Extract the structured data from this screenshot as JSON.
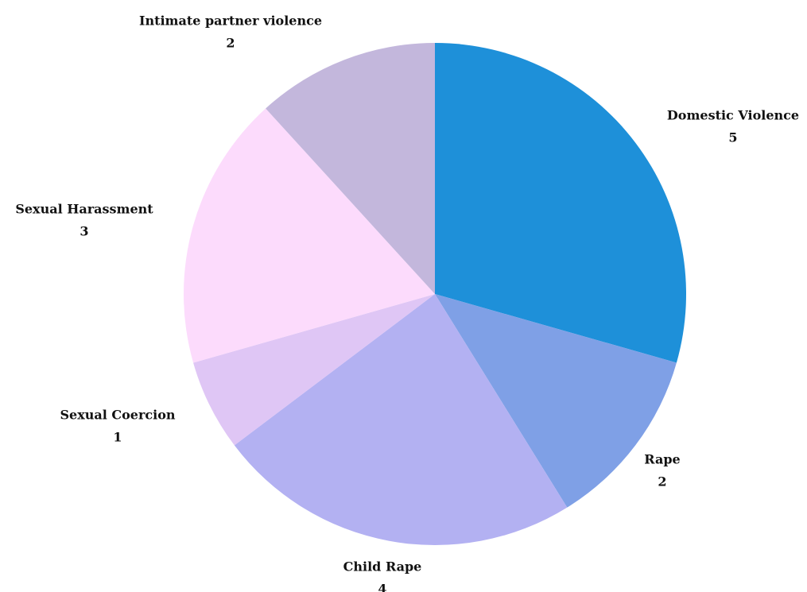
{
  "chart_data": {
    "type": "pie",
    "title": "",
    "start": "top",
    "direction": "clockwise",
    "slices": [
      {
        "label": "Domestic Violence",
        "value": 5,
        "color": "#1e90d9"
      },
      {
        "label": "Rape",
        "value": 2,
        "color": "#7fa0e6"
      },
      {
        "label": "Child Rape",
        "value": 4,
        "color": "#b3b1f2"
      },
      {
        "label": "Sexual Coercion",
        "value": 1,
        "color": "#dfc6f5"
      },
      {
        "label": "Sexual Harassment",
        "value": 3,
        "color": "#fcdbfc"
      },
      {
        "label": "Intimate partner violence",
        "value": 2,
        "color": "#c3b7dc"
      }
    ]
  }
}
